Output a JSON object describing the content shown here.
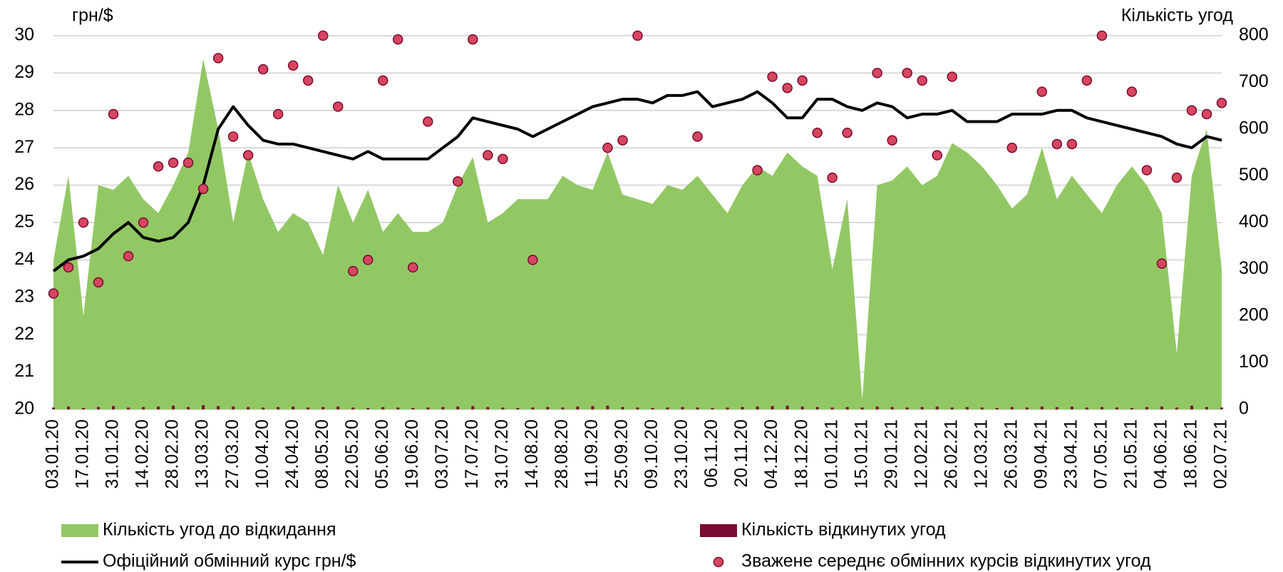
{
  "chart_data": {
    "type": "combo",
    "ylabel": "грн/$",
    "y2label": "Кількість угод",
    "categories": [
      "03.01.20",
      null,
      "17.01.20",
      null,
      "31.01.20",
      null,
      "14.02.20",
      null,
      "28.02.20",
      null,
      "13.03.20",
      null,
      "27.03.20",
      null,
      "10.04.20",
      null,
      "24.04.20",
      null,
      "08.05.20",
      null,
      "22.05.20",
      null,
      "05.06.20",
      null,
      "19.06.20",
      null,
      "03.07.20",
      null,
      "17.07.20",
      null,
      "31.07.20",
      null,
      "14.08.20",
      null,
      "28.08.20",
      null,
      "11.09.20",
      null,
      "25.09.20",
      null,
      "09.10.20",
      null,
      "23.10.20",
      null,
      "06.11.20",
      null,
      "20.11.20",
      null,
      "04.12.20",
      null,
      "18.12.20",
      null,
      "01.01.21",
      null,
      "15.01.21",
      null,
      "29.01.21",
      null,
      "12.02.21",
      null,
      "26.02.21",
      null,
      "12.03.21",
      null,
      "26.03.21",
      null,
      "09.04.21",
      null,
      "23.04.21",
      null,
      "07.05.21",
      null,
      "21.05.21",
      null,
      "04.06.21",
      null,
      "18.06.21",
      null,
      "02.07.21"
    ],
    "series": [
      {
        "name": "Кількість угод до відкидання",
        "type": "area",
        "axis": "y2",
        "color": "#92c864",
        "values": [
          320,
          500,
          200,
          480,
          470,
          500,
          450,
          420,
          480,
          550,
          750,
          600,
          400,
          550,
          450,
          380,
          420,
          400,
          330,
          480,
          400,
          470,
          380,
          420,
          380,
          380,
          400,
          480,
          540,
          400,
          420,
          450,
          450,
          450,
          500,
          480,
          470,
          550,
          460,
          450,
          440,
          480,
          470,
          500,
          460,
          420,
          480,
          520,
          500,
          550,
          520,
          500,
          300,
          450,
          20,
          480,
          490,
          520,
          480,
          500,
          570,
          550,
          520,
          480,
          430,
          460,
          560,
          450,
          500,
          460,
          420,
          480,
          520,
          480,
          420,
          120,
          500,
          600,
          300
        ]
      },
      {
        "name": "Кількість відкинутих угод",
        "type": "bar",
        "axis": "y2",
        "color": "#7b0a34",
        "values": [
          4,
          6,
          3,
          5,
          7,
          4,
          5,
          6,
          8,
          5,
          9,
          7,
          6,
          5,
          4,
          5,
          6,
          4,
          5,
          6,
          4,
          3,
          5,
          4,
          3,
          4,
          5,
          6,
          7,
          5,
          4,
          3,
          4,
          5,
          4,
          6,
          7,
          8,
          5,
          4,
          3,
          4,
          5,
          4,
          3,
          4,
          5,
          6,
          7,
          8,
          6,
          5,
          4,
          5,
          4,
          6,
          5,
          4,
          5,
          6,
          4,
          5,
          4,
          3,
          5,
          4,
          6,
          5,
          6,
          4,
          5,
          4,
          3,
          5,
          6,
          4,
          8,
          5,
          4
        ]
      },
      {
        "name": "Офіційний обмінний курс грн/$",
        "type": "line",
        "axis": "y",
        "color": "#000000",
        "values": [
          23.7,
          24.0,
          24.1,
          24.3,
          24.7,
          25.0,
          24.6,
          24.5,
          24.6,
          25.0,
          26.0,
          27.5,
          28.1,
          27.6,
          27.2,
          27.1,
          27.1,
          27.0,
          26.9,
          26.8,
          26.7,
          26.9,
          26.7,
          26.7,
          26.7,
          26.7,
          27.0,
          27.3,
          27.8,
          27.7,
          27.6,
          27.5,
          27.3,
          27.5,
          27.7,
          27.9,
          28.1,
          28.2,
          28.3,
          28.3,
          28.2,
          28.4,
          28.4,
          28.5,
          28.1,
          28.2,
          28.3,
          28.5,
          28.2,
          27.8,
          27.8,
          28.3,
          28.3,
          28.1,
          28.0,
          28.2,
          28.1,
          27.8,
          27.9,
          27.9,
          28.0,
          27.7,
          27.7,
          27.7,
          27.9,
          27.9,
          27.9,
          28.0,
          28.0,
          27.8,
          27.7,
          27.6,
          27.5,
          27.4,
          27.3,
          27.1,
          27.0,
          27.3,
          27.2
        ]
      },
      {
        "name": "Зважене середнє обмінних курсів відкинутих угод",
        "type": "scatter",
        "axis": "y",
        "color": "#d6465f",
        "values": [
          23.1,
          23.8,
          25.0,
          23.4,
          27.9,
          24.1,
          25.0,
          26.5,
          26.6,
          26.6,
          25.9,
          29.4,
          27.3,
          26.8,
          29.1,
          27.9,
          29.2,
          28.8,
          30.0,
          28.1,
          23.7,
          24.0,
          28.8,
          29.9,
          23.8,
          27.7,
          null,
          26.1,
          29.9,
          26.8,
          26.7,
          null,
          24.0,
          null,
          null,
          null,
          null,
          27.0,
          27.2,
          30.0,
          null,
          null,
          null,
          27.3,
          null,
          null,
          null,
          26.4,
          28.9,
          28.6,
          28.8,
          27.4,
          26.2,
          27.4,
          null,
          29.0,
          27.2,
          29.0,
          28.8,
          26.8,
          28.9,
          null,
          null,
          null,
          27.0,
          null,
          28.5,
          27.1,
          27.1,
          28.8,
          30.0,
          null,
          28.5,
          26.4,
          23.9,
          26.2,
          28.0,
          27.9,
          28.2
        ]
      }
    ],
    "ylim": [
      20,
      30
    ],
    "yticks": [
      20,
      21,
      22,
      23,
      24,
      25,
      26,
      27,
      28,
      29,
      30
    ],
    "y2lim": [
      0,
      800
    ],
    "y2ticks": [
      0,
      100,
      200,
      300,
      400,
      500,
      600,
      700,
      800
    ],
    "grid": true
  }
}
